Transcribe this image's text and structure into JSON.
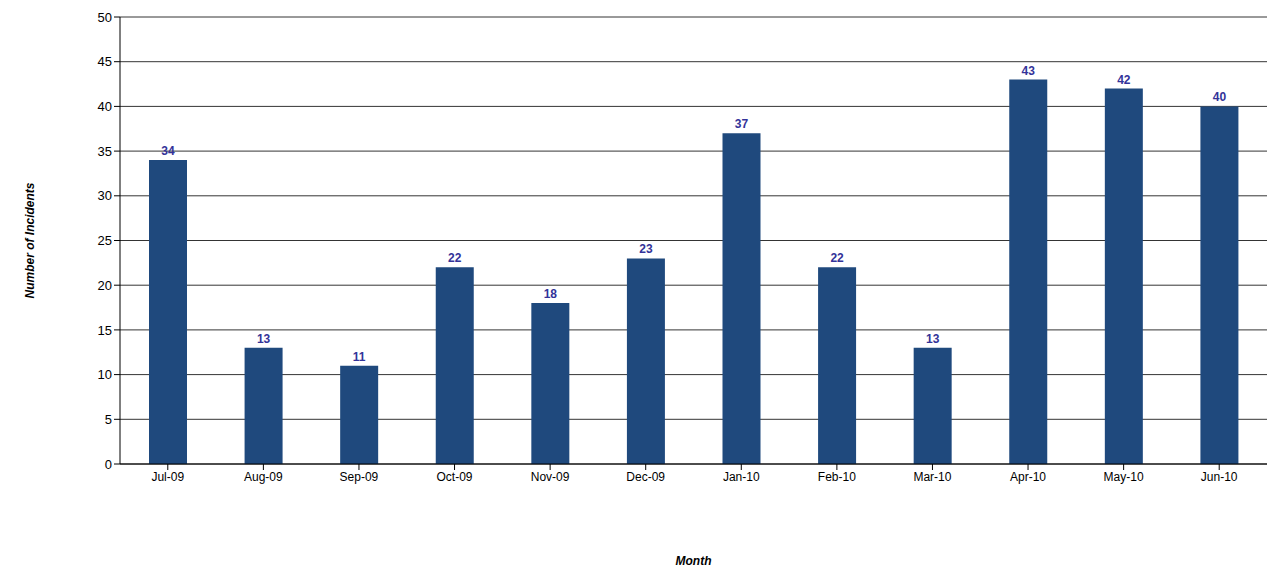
{
  "chart_data": {
    "type": "bar",
    "x_label": "Month",
    "y_label": "Number of Incidents",
    "categories": [
      "Jul-09",
      "Aug-09",
      "Sep-09",
      "Oct-09",
      "Nov-09",
      "Dec-09",
      "Jan-10",
      "Feb-10",
      "Mar-10",
      "Apr-10",
      "May-10",
      "Jun-10"
    ],
    "values": [
      34,
      13,
      11,
      22,
      18,
      23,
      37,
      22,
      13,
      43,
      42,
      40
    ],
    "color": "#1f497d",
    "ylim": [
      0,
      50
    ],
    "yticks": [
      0,
      5,
      10,
      15,
      20,
      25,
      30,
      35,
      40,
      45,
      50
    ],
    "grid": true,
    "data_labels": true
  }
}
